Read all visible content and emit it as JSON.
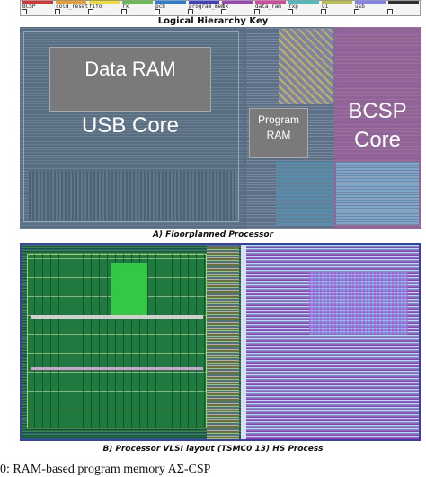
{
  "legend": {
    "items": [
      {
        "label": "BCSP",
        "color": "#e03030"
      },
      {
        "label": "cold_reset",
        "color": "#f0a020"
      },
      {
        "label": "fifo",
        "color": "#f0e020"
      },
      {
        "label": "rx",
        "color": "#60c040"
      },
      {
        "label": "pc8",
        "color": "#2080e0"
      },
      {
        "label": "program_mem",
        "color": "#4040d0"
      },
      {
        "label": "tx",
        "color": "#a040c0"
      },
      {
        "label": "data_ram",
        "color": "#e040a0"
      },
      {
        "label": "rxp",
        "color": "#40c0c0"
      },
      {
        "label": "u1",
        "color": "#c0c040"
      },
      {
        "label": "usb",
        "color": "#8080ff"
      },
      {
        "label": "",
        "color": "#303030"
      }
    ]
  },
  "key_caption": "Logical Hierarchy Key",
  "panel_a": {
    "caption": "A) Floorplanned Processor",
    "blocks": {
      "data_ram": "Data RAM",
      "usb_core": "USB Core",
      "program_ram_line1": "Program",
      "program_ram_line2": "RAM",
      "bcsp_line1": "BCSP",
      "bcsp_line2": "Core"
    }
  },
  "panel_b": {
    "caption": "B) Processor VLSI layout (TSMC0 13) HS Process"
  },
  "figure_caption": "0: RAM-based program memory AΣ-CSP"
}
